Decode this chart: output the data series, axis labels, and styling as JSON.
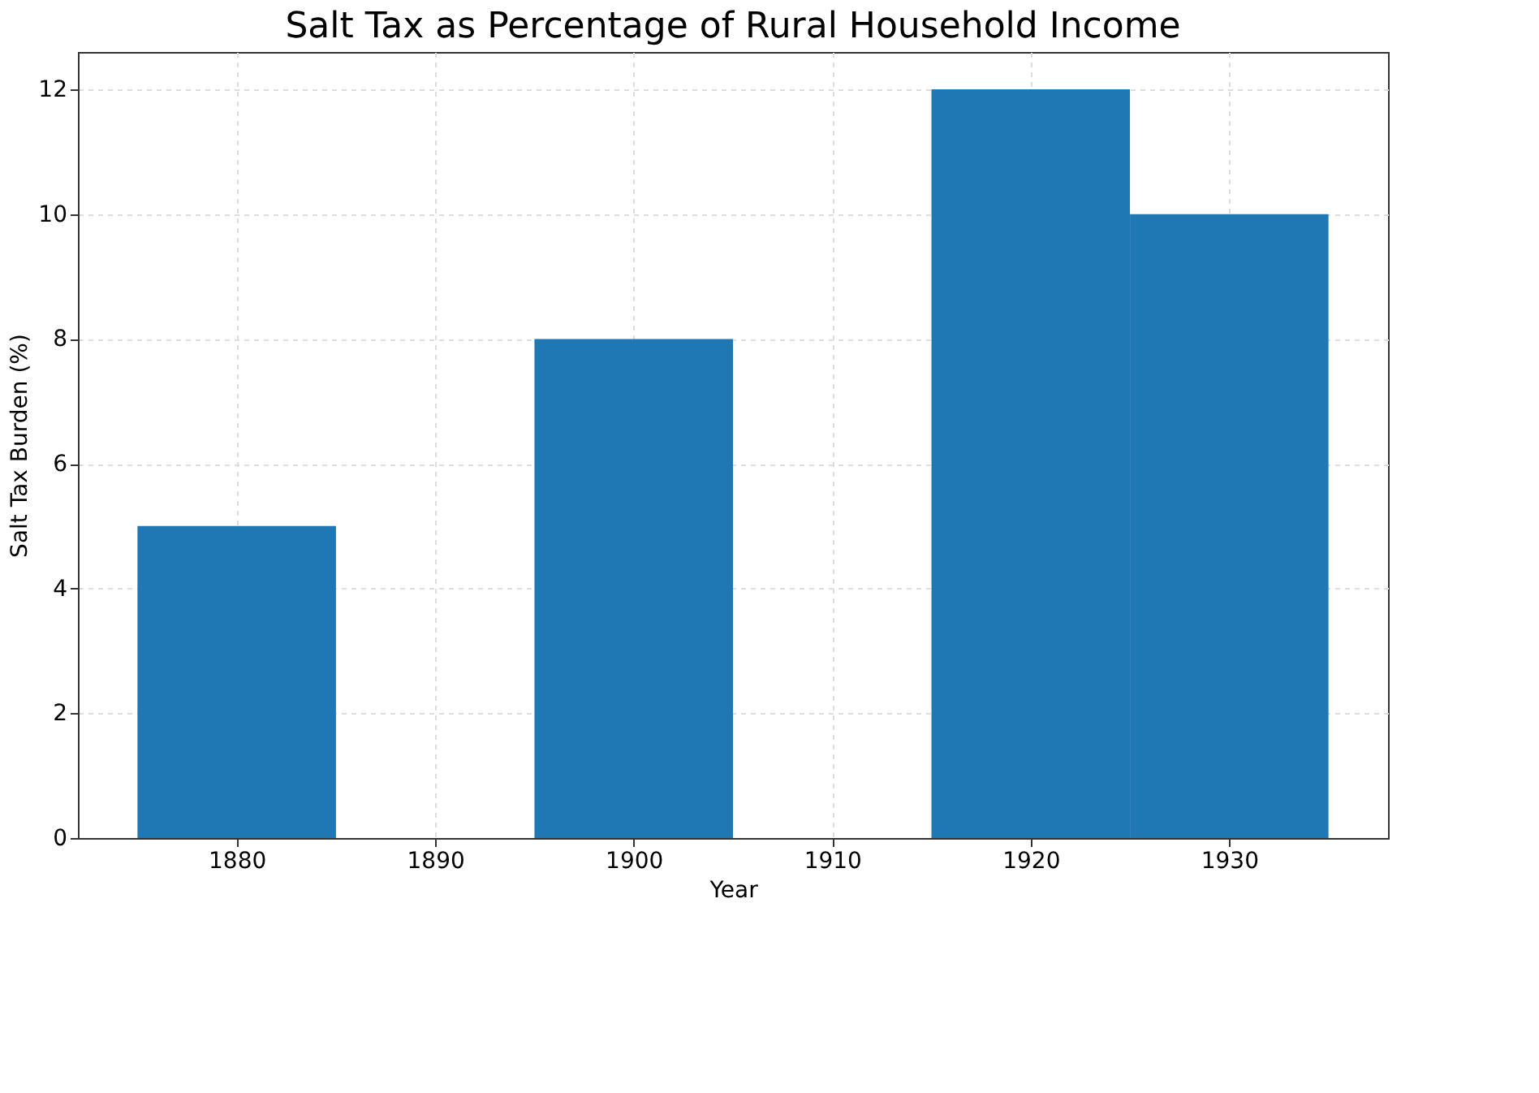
{
  "chart_data": {
    "type": "bar",
    "title": "Salt Tax as Percentage of Rural Household Income",
    "xlabel": "Year",
    "ylabel": "Salt Tax Burden (%)",
    "x": [
      1880,
      1900,
      1920,
      1930
    ],
    "series": [
      {
        "color": "#1f77b4",
        "values": [
          5,
          8,
          12,
          10
        ]
      }
    ],
    "xlim": [
      1872,
      1938
    ],
    "xticks": [
      1880,
      1890,
      1900,
      1910,
      1920,
      1930
    ],
    "ylim": [
      0,
      12.6
    ],
    "yticks": [
      0,
      2,
      4,
      6,
      8,
      10,
      12
    ],
    "grid": true
  }
}
